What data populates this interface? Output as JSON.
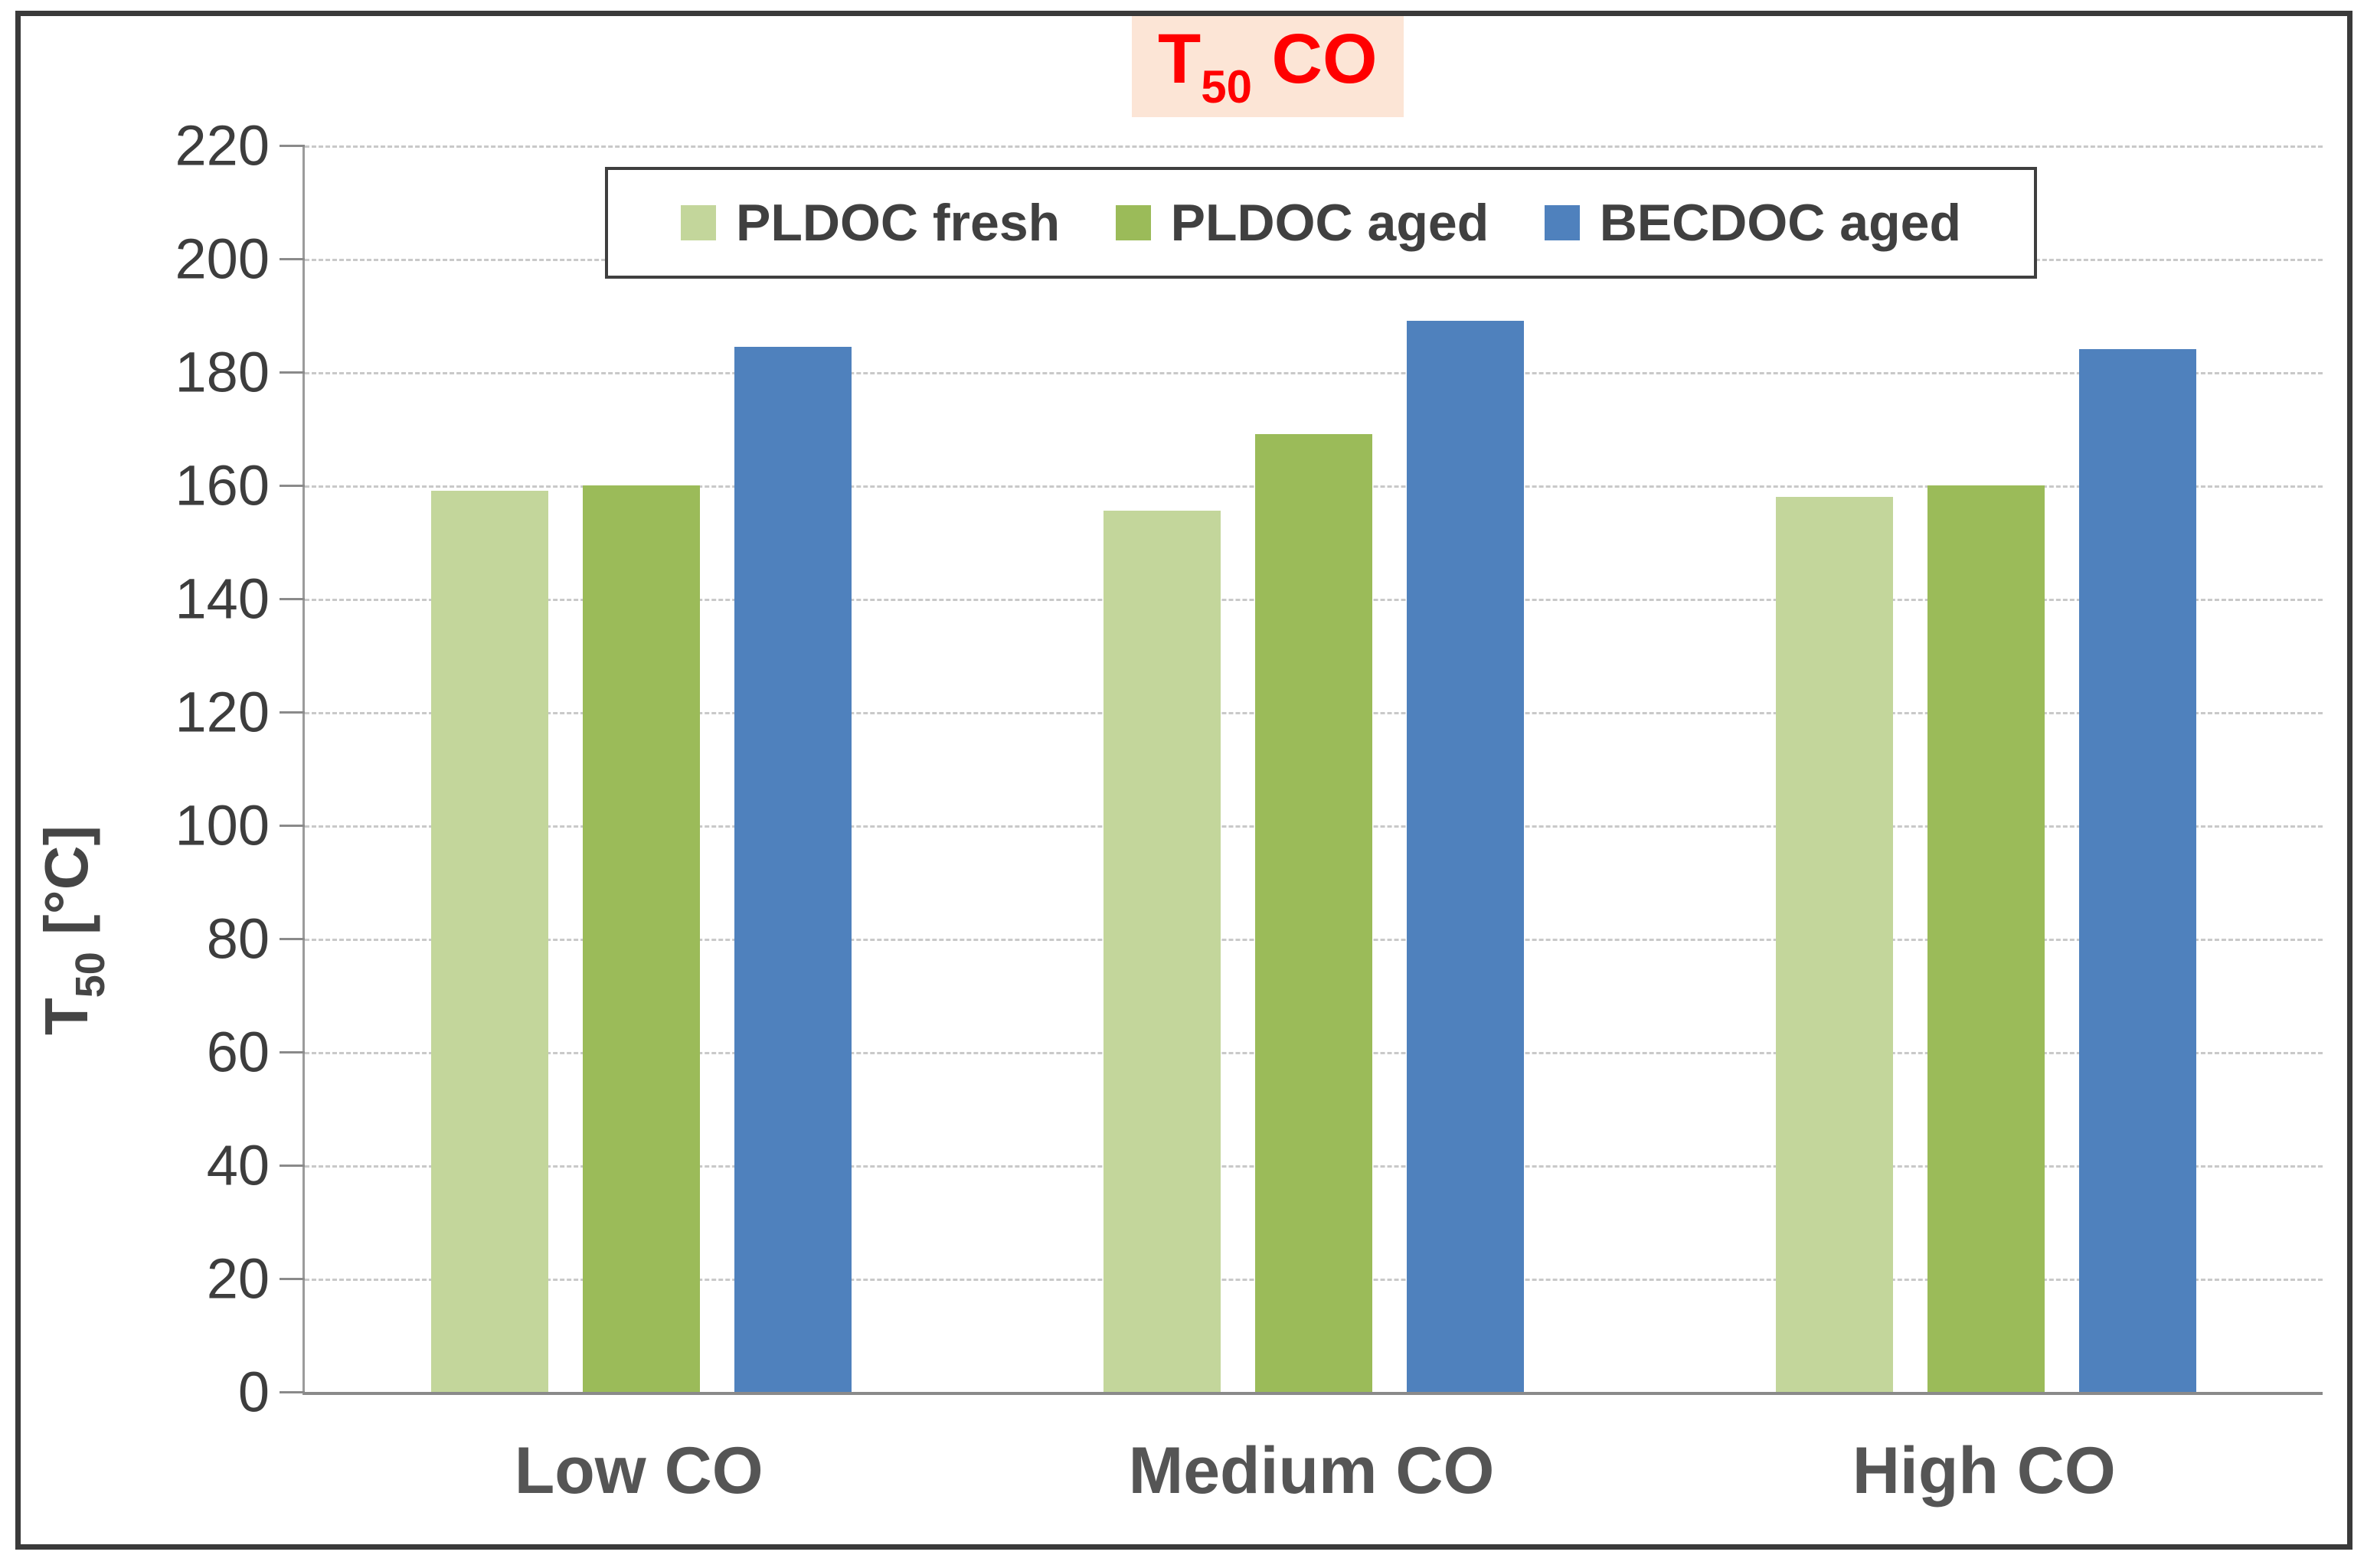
{
  "title": {
    "base": "T",
    "subscript": "50",
    "suffix": " CO",
    "color": "#FF0000",
    "background": "#FCE5D6"
  },
  "y_axis_title": {
    "base": "T",
    "subscript": "50",
    "suffix": " [°C]"
  },
  "chart_data": {
    "type": "bar",
    "title": "T50 CO",
    "categories": [
      "Low CO",
      "Medium CO",
      "High CO"
    ],
    "series": [
      {
        "name": "PLDOC fresh",
        "color": "#C3D69B",
        "values": [
          159,
          155.5,
          158
        ]
      },
      {
        "name": "PLDOC aged",
        "color": "#9BBB59",
        "values": [
          160,
          169,
          160
        ]
      },
      {
        "name": "BECDOC aged",
        "color": "#4F81BD",
        "values": [
          184.5,
          189,
          184
        ]
      }
    ],
    "xlabel": "",
    "ylabel": "T50 [°C]",
    "ylim": [
      0,
      220
    ],
    "ytick_step": 20,
    "grid": true,
    "gridline_style": "dashed",
    "legend_position": "top-center",
    "axis_color": "#8A8A8A",
    "tick_label_color": "#3D3D3D"
  }
}
